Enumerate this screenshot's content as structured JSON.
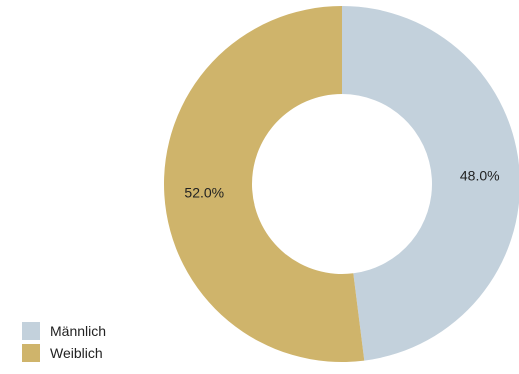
{
  "chart_data": {
    "type": "pie",
    "donut": true,
    "categories": [
      "Männlich",
      "Weiblich"
    ],
    "values": [
      48.0,
      52.0
    ],
    "labels": [
      "48.0%",
      "52.0%"
    ],
    "colors": [
      "#c3d1dc",
      "#cfb46b"
    ],
    "legend_position": "bottom-left",
    "start": "top",
    "direction": "clockwise"
  }
}
